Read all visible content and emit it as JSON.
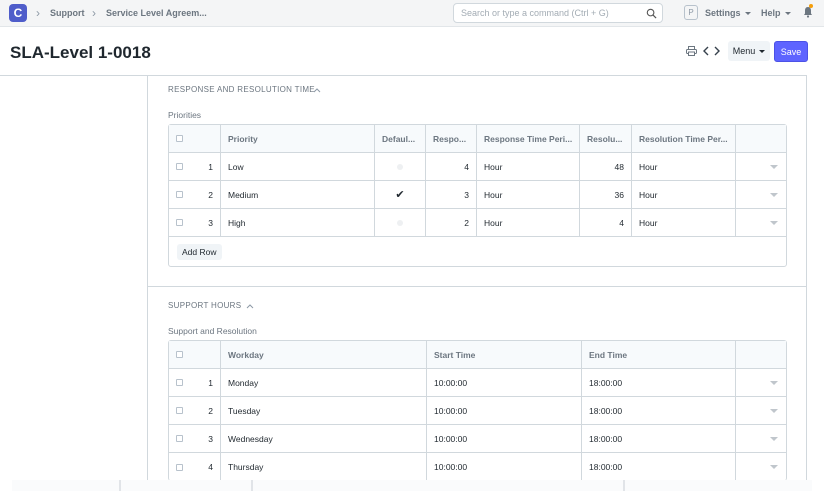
{
  "navbar": {
    "logo_letter": "C",
    "breadcrumbs": [
      "Support",
      "Service Level Agreem..."
    ],
    "search_placeholder": "Search or type a command (Ctrl + G)",
    "avatar_letter": "P",
    "settings_label": "Settings",
    "help_label": "Help"
  },
  "page": {
    "title": "SLA-Level 1-0018",
    "menu_label": "Menu",
    "save_label": "Save"
  },
  "response_section": {
    "heading": "RESPONSE AND RESOLUTION TIME",
    "table_label": "Priorities",
    "columns": [
      "Priority",
      "Defaul...",
      "Respo...",
      "Response Time Peri...",
      "Resolu...",
      "Resolution Time Per..."
    ],
    "rows": [
      {
        "idx": "1",
        "priority": "Low",
        "default": false,
        "response": "4",
        "response_period": "Hour",
        "resolution": "48",
        "resolution_period": "Hour"
      },
      {
        "idx": "2",
        "priority": "Medium",
        "default": true,
        "response": "3",
        "response_period": "Hour",
        "resolution": "36",
        "resolution_period": "Hour"
      },
      {
        "idx": "3",
        "priority": "High",
        "default": false,
        "response": "2",
        "response_period": "Hour",
        "resolution": "4",
        "resolution_period": "Hour"
      }
    ],
    "add_row_label": "Add Row",
    "default_check": "✔"
  },
  "support_section": {
    "heading": "SUPPORT HOURS",
    "table_label": "Support and Resolution",
    "columns": [
      "Workday",
      "Start Time",
      "End Time"
    ],
    "rows": [
      {
        "idx": "1",
        "workday": "Monday",
        "start": "10:00:00",
        "end": "18:00:00"
      },
      {
        "idx": "2",
        "workday": "Tuesday",
        "start": "10:00:00",
        "end": "18:00:00"
      },
      {
        "idx": "3",
        "workday": "Wednesday",
        "start": "10:00:00",
        "end": "18:00:00"
      },
      {
        "idx": "4",
        "workday": "Thursday",
        "start": "10:00:00",
        "end": "18:00:00"
      }
    ]
  },
  "colors": {
    "accent": "#5e64ff",
    "logo": "#4f5dca",
    "notification": "#f59e0b"
  }
}
